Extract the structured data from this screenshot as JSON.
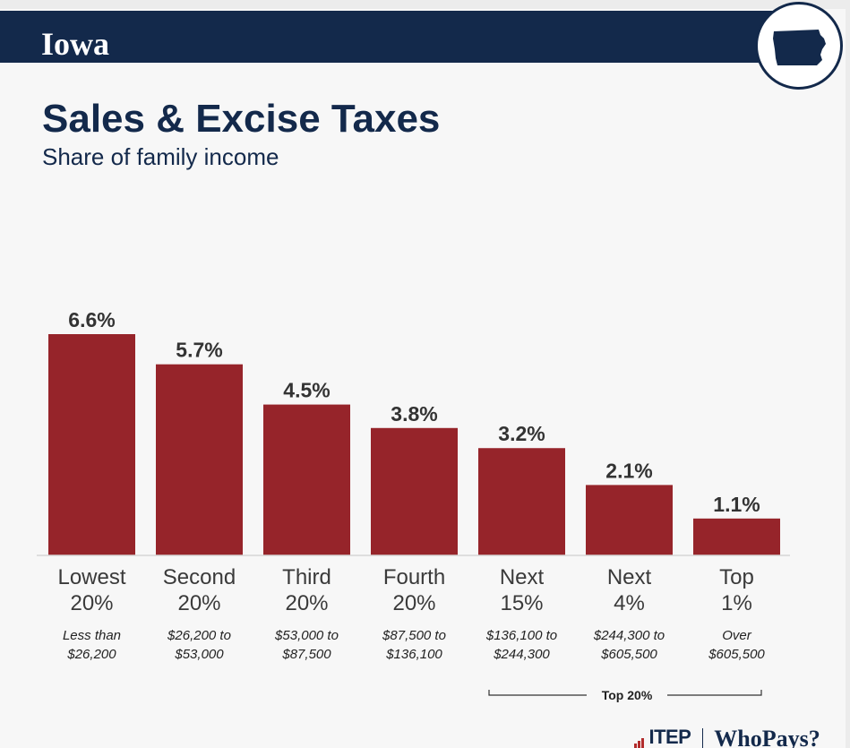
{
  "header": {
    "state": "Iowa",
    "badge_icon": "iowa-map-icon"
  },
  "footer": {
    "brand": "ITEP",
    "product": "WhoPays?"
  },
  "colors": {
    "bar": "#96242a",
    "navy": "#13294b"
  },
  "chart_data": {
    "type": "bar",
    "title": "Sales & Excise Taxes",
    "subtitle": "Share of family income",
    "categories": [
      {
        "line1": "Lowest",
        "line2": "20%",
        "range1": "Less than",
        "range2": "$26,200"
      },
      {
        "line1": "Second",
        "line2": "20%",
        "range1": "$26,200 to",
        "range2": "$53,000"
      },
      {
        "line1": "Third",
        "line2": "20%",
        "range1": "$53,000 to",
        "range2": "$87,500"
      },
      {
        "line1": "Fourth",
        "line2": "20%",
        "range1": "$87,500 to",
        "range2": "$136,100"
      },
      {
        "line1": "Next",
        "line2": "15%",
        "range1": "$136,100 to",
        "range2": "$244,300"
      },
      {
        "line1": "Next",
        "line2": "4%",
        "range1": "$244,300 to",
        "range2": "$605,500"
      },
      {
        "line1": "Top",
        "line2": "1%",
        "range1": "Over",
        "range2": "$605,500"
      }
    ],
    "values": [
      6.6,
      5.7,
      4.5,
      3.8,
      3.2,
      2.1,
      1.1
    ],
    "value_labels": [
      "6.6%",
      "5.7%",
      "4.5%",
      "3.8%",
      "3.2%",
      "2.1%",
      "1.1%"
    ],
    "ylim": [
      0,
      6.6
    ],
    "grid": false,
    "group_bracket": {
      "label": "Top 20%",
      "from_index": 4,
      "to_index": 6
    }
  }
}
